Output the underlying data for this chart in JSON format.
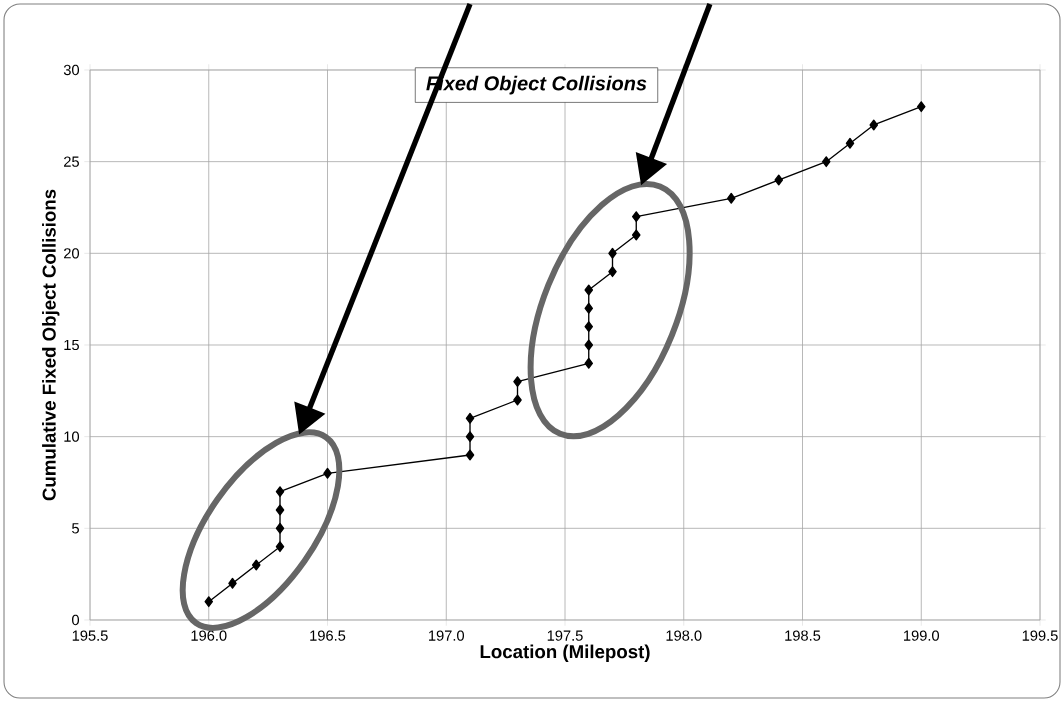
{
  "chart_data": {
    "type": "line",
    "title": "Fixed Object Collisions",
    "xlabel": "Location (Milepost)",
    "ylabel": "Cumulative Fixed Object Collisions",
    "x": [
      196.0,
      196.1,
      196.2,
      196.3,
      196.3,
      196.3,
      196.3,
      196.5,
      197.1,
      197.1,
      197.1,
      197.3,
      197.3,
      197.6,
      197.6,
      197.6,
      197.6,
      197.6,
      197.7,
      197.7,
      197.8,
      197.8,
      198.2,
      198.4,
      198.6,
      198.7,
      198.8,
      199.0
    ],
    "series": [
      {
        "color": "#000000",
        "values": [
          1,
          2,
          3,
          4,
          5,
          6,
          7,
          8,
          9,
          10,
          11,
          12,
          13,
          14,
          15,
          16,
          17,
          18,
          19,
          20,
          21,
          22,
          23,
          24,
          25,
          26,
          27,
          28
        ]
      }
    ],
    "xlim": [
      195.5,
      199.5
    ],
    "ylim": [
      0,
      30
    ],
    "xticks": [
      {
        "value": 195.5,
        "label": "195.5"
      },
      {
        "value": 196.0,
        "label": "196.0"
      },
      {
        "value": 196.5,
        "label": "196.5"
      },
      {
        "value": 197.0,
        "label": "197.0"
      },
      {
        "value": 197.5,
        "label": "197.5"
      },
      {
        "value": 198.0,
        "label": "198.0"
      },
      {
        "value": 198.5,
        "label": "198.5"
      },
      {
        "value": 199.0,
        "label": "199.0"
      },
      {
        "value": 199.5,
        "label": "199.5"
      }
    ],
    "yticks": [
      0,
      5,
      10,
      15,
      20,
      25,
      30
    ],
    "grid": true,
    "marker": "diamond",
    "line_style": "solid"
  }
}
